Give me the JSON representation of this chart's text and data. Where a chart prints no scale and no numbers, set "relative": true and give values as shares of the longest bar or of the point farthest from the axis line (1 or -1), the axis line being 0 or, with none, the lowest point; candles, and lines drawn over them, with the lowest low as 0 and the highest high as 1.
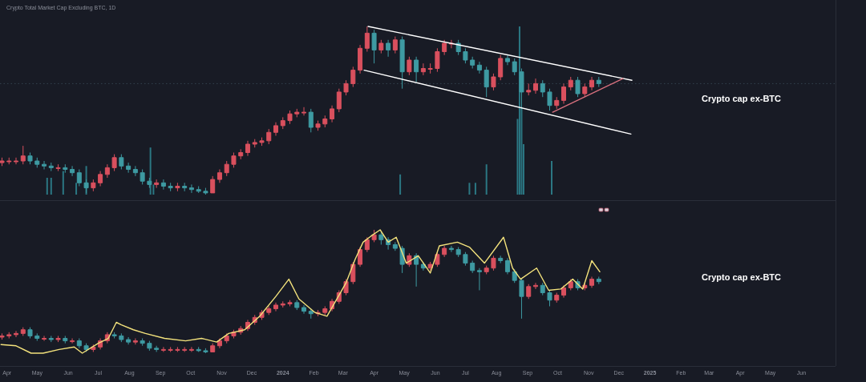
{
  "chart_data": [
    {
      "type": "candlestick",
      "title": "Crypto Total Market Cap Excluding BTC, 1D",
      "relative": true,
      "tick_labels": false,
      "xlim": [
        "2023-03-25",
        "2025-07-05"
      ],
      "x": [
        "2023-03-27",
        "2023-04-03",
        "2023-04-10",
        "2023-04-17",
        "2023-04-24",
        "2023-05-01",
        "2023-05-08",
        "2023-05-15",
        "2023-05-22",
        "2023-05-29",
        "2023-06-05",
        "2023-06-12",
        "2023-06-19",
        "2023-06-26",
        "2023-07-03",
        "2023-07-10",
        "2023-07-17",
        "2023-07-24",
        "2023-07-31",
        "2023-08-07",
        "2023-08-14",
        "2023-08-21",
        "2023-08-28",
        "2023-09-04",
        "2023-09-11",
        "2023-09-18",
        "2023-09-25",
        "2023-10-02",
        "2023-10-09",
        "2023-10-16",
        "2023-10-23",
        "2023-10-30",
        "2023-11-06",
        "2023-11-13",
        "2023-11-20",
        "2023-11-27",
        "2023-12-04",
        "2023-12-11",
        "2023-12-18",
        "2023-12-25",
        "2024-01-01",
        "2024-01-08",
        "2024-01-15",
        "2024-01-22",
        "2024-01-29",
        "2024-02-05",
        "2024-02-12",
        "2024-02-19",
        "2024-02-26",
        "2024-03-04",
        "2024-03-11",
        "2024-03-18",
        "2024-03-25",
        "2024-04-01",
        "2024-04-08",
        "2024-04-15",
        "2024-04-22",
        "2024-04-29",
        "2024-05-06",
        "2024-05-13",
        "2024-05-20",
        "2024-05-27",
        "2024-06-03",
        "2024-06-10",
        "2024-06-17",
        "2024-06-24",
        "2024-07-01",
        "2024-07-08",
        "2024-07-15",
        "2024-07-22",
        "2024-07-29",
        "2024-08-05",
        "2024-08-12",
        "2024-08-19",
        "2024-08-26",
        "2024-09-02",
        "2024-09-09",
        "2024-09-16",
        "2024-09-23",
        "2024-09-30",
        "2024-10-07",
        "2024-10-14",
        "2024-10-21",
        "2024-10-28",
        "2024-11-04",
        "2024-11-11"
      ],
      "ohlc": [
        [
          0.19,
          0.22,
          0.17,
          0.2
        ],
        [
          0.2,
          0.22,
          0.18,
          0.2
        ],
        [
          0.2,
          0.22,
          0.18,
          0.2
        ],
        [
          0.2,
          0.29,
          0.18,
          0.23
        ],
        [
          0.23,
          0.25,
          0.18,
          0.2
        ],
        [
          0.2,
          0.22,
          0.16,
          0.18
        ],
        [
          0.18,
          0.2,
          0.15,
          0.17
        ],
        [
          0.17,
          0.19,
          0.14,
          0.16
        ],
        [
          0.16,
          0.18,
          0.14,
          0.16
        ],
        [
          0.16,
          0.18,
          0.13,
          0.15
        ],
        [
          0.15,
          0.17,
          0.11,
          0.13
        ],
        [
          0.13,
          0.15,
          0.05,
          0.07
        ],
        [
          0.07,
          0.09,
          0.01,
          0.04
        ],
        [
          0.04,
          0.09,
          0.02,
          0.07
        ],
        [
          0.07,
          0.14,
          0.05,
          0.12
        ],
        [
          0.12,
          0.18,
          0.1,
          0.16
        ],
        [
          0.16,
          0.24,
          0.14,
          0.22
        ],
        [
          0.22,
          0.24,
          0.15,
          0.17
        ],
        [
          0.17,
          0.19,
          0.13,
          0.15
        ],
        [
          0.15,
          0.17,
          0.11,
          0.13
        ],
        [
          0.13,
          0.15,
          0.06,
          0.08
        ],
        [
          0.08,
          0.1,
          0.04,
          0.06
        ],
        [
          0.06,
          0.09,
          0.04,
          0.07
        ],
        [
          0.07,
          0.09,
          0.03,
          0.05
        ],
        [
          0.05,
          0.07,
          0.02,
          0.04
        ],
        [
          0.04,
          0.07,
          0.02,
          0.05
        ],
        [
          0.05,
          0.07,
          0.02,
          0.04
        ],
        [
          0.04,
          0.06,
          0.01,
          0.03
        ],
        [
          0.03,
          0.05,
          0.01,
          0.02
        ],
        [
          0.02,
          0.04,
          0,
          0.01
        ],
        [
          0.01,
          0.11,
          0.01,
          0.09
        ],
        [
          0.09,
          0.15,
          0.07,
          0.13
        ],
        [
          0.13,
          0.2,
          0.11,
          0.18
        ],
        [
          0.18,
          0.25,
          0.16,
          0.23
        ],
        [
          0.23,
          0.27,
          0.21,
          0.25
        ],
        [
          0.25,
          0.32,
          0.23,
          0.3
        ],
        [
          0.3,
          0.33,
          0.28,
          0.31
        ],
        [
          0.31,
          0.34,
          0.29,
          0.32
        ],
        [
          0.32,
          0.39,
          0.3,
          0.37
        ],
        [
          0.37,
          0.43,
          0.35,
          0.41
        ],
        [
          0.41,
          0.46,
          0.39,
          0.44
        ],
        [
          0.44,
          0.5,
          0.42,
          0.48
        ],
        [
          0.48,
          0.51,
          0.46,
          0.49
        ],
        [
          0.49,
          0.52,
          0.47,
          0.49
        ],
        [
          0.49,
          0.51,
          0.37,
          0.4
        ],
        [
          0.4,
          0.44,
          0.38,
          0.42
        ],
        [
          0.42,
          0.47,
          0.4,
          0.45
        ],
        [
          0.45,
          0.53,
          0.43,
          0.51
        ],
        [
          0.51,
          0.63,
          0.49,
          0.61
        ],
        [
          0.61,
          0.68,
          0.59,
          0.66
        ],
        [
          0.66,
          0.76,
          0.64,
          0.74
        ],
        [
          0.74,
          0.89,
          0.72,
          0.87
        ],
        [
          0.87,
          1,
          0.85,
          0.96
        ],
        [
          0.96,
          0.98,
          0.78,
          0.86
        ],
        [
          0.86,
          0.92,
          0.84,
          0.9
        ],
        [
          0.9,
          0.92,
          0.82,
          0.86
        ],
        [
          0.86,
          0.94,
          0.84,
          0.92
        ],
        [
          0.92,
          0.94,
          0.63,
          0.73
        ],
        [
          0.73,
          0.82,
          0.71,
          0.8
        ],
        [
          0.8,
          0.82,
          0.67,
          0.73
        ],
        [
          0.73,
          0.78,
          0.71,
          0.75
        ],
        [
          0.75,
          0.78,
          0.72,
          0.75
        ],
        [
          0.75,
          0.87,
          0.73,
          0.85
        ],
        [
          0.85,
          0.92,
          0.83,
          0.9
        ],
        [
          0.9,
          0.92,
          0.87,
          0.9
        ],
        [
          0.9,
          0.92,
          0.83,
          0.85
        ],
        [
          0.85,
          0.87,
          0.78,
          0.8
        ],
        [
          0.8,
          0.82,
          0.75,
          0.77
        ],
        [
          0.77,
          0.79,
          0.72,
          0.74
        ],
        [
          0.74,
          0.76,
          0.58,
          0.64
        ],
        [
          0.64,
          0.72,
          0.62,
          0.7
        ],
        [
          0.7,
          0.83,
          0.68,
          0.81
        ],
        [
          0.81,
          0.83,
          0.77,
          0.79
        ],
        [
          0.79,
          0.81,
          0.71,
          0.73
        ],
        [
          0.73,
          0.75,
          0.51,
          0.61
        ],
        [
          0.61,
          0.66,
          0.59,
          0.62
        ],
        [
          0.62,
          0.69,
          0.6,
          0.66
        ],
        [
          0.66,
          0.68,
          0.58,
          0.61
        ],
        [
          0.61,
          0.63,
          0.5,
          0.53
        ],
        [
          0.53,
          0.58,
          0.51,
          0.56
        ],
        [
          0.56,
          0.66,
          0.54,
          0.64
        ],
        [
          0.64,
          0.7,
          0.62,
          0.68
        ],
        [
          0.68,
          0.7,
          0.58,
          0.6
        ],
        [
          0.6,
          0.66,
          0.58,
          0.64
        ],
        [
          0.64,
          0.7,
          0.62,
          0.68
        ],
        [
          0.68,
          0.7,
          0.64,
          0.66
        ]
      ],
      "series": [
        {
          "type": "bar",
          "color": "#2b7783",
          "x": [
            "2023-05-11",
            "2023-05-15",
            "2023-05-27",
            "2023-06-09",
            "2023-06-19",
            "2023-08-22",
            "2023-08-25",
            "2024-04-27",
            "2024-07-05",
            "2024-07-11",
            "2024-07-22",
            "2024-08-22",
            "2024-08-24",
            "2024-08-26",
            "2024-08-28",
            "2024-09-25"
          ],
          "values": [
            0.1,
            0.1,
            0.14,
            0.07,
            0.17,
            0.28,
            0.06,
            0.12,
            0.07,
            0.07,
            0.18,
            0.45,
            1,
            0.52,
            0.3,
            0.2
          ]
        },
        {
          "type": "line",
          "color": "#ffffff",
          "x": [
            "2024-03-26",
            "2024-12-14"
          ],
          "values": [
            1,
            0.68
          ]
        },
        {
          "type": "line",
          "color": "#ffffff",
          "x": [
            "2024-03-22",
            "2024-12-13"
          ],
          "values": [
            0.74,
            0.36
          ]
        },
        {
          "type": "line",
          "color": "#d9707e",
          "x": [
            "2024-09-26",
            "2024-12-05"
          ],
          "values": [
            0.49,
            0.69
          ]
        }
      ],
      "ref_lines": [
        {
          "axis": "y",
          "value": 0.66,
          "color": "#34434e",
          "line_style": "dotted"
        }
      ],
      "annotations": [
        "Crypto cap ex-BTC"
      ]
    },
    {
      "type": "candlestick",
      "relative": true,
      "tick_labels": "x",
      "xlim": [
        "2023-03-25",
        "2025-07-05"
      ],
      "xticks": [
        {
          "value": "2023-04-01",
          "label": "Apr"
        },
        {
          "value": "2023-05-01",
          "label": "May"
        },
        {
          "value": "2023-06-01",
          "label": "Jun"
        },
        {
          "value": "2023-07-01",
          "label": "Jul"
        },
        {
          "value": "2023-08-01",
          "label": "Aug"
        },
        {
          "value": "2023-09-01",
          "label": "Sep"
        },
        {
          "value": "2023-10-01",
          "label": "Oct"
        },
        {
          "value": "2023-11-01",
          "label": "Nov"
        },
        {
          "value": "2023-12-01",
          "label": "Dec"
        },
        {
          "value": "2024-01-01",
          "label": "2024"
        },
        {
          "value": "2024-02-01",
          "label": "Feb"
        },
        {
          "value": "2024-03-01",
          "label": "Mar"
        },
        {
          "value": "2024-04-01",
          "label": "Apr"
        },
        {
          "value": "2024-05-01",
          "label": "May"
        },
        {
          "value": "2024-06-01",
          "label": "Jun"
        },
        {
          "value": "2024-07-01",
          "label": "Jul"
        },
        {
          "value": "2024-08-01",
          "label": "Aug"
        },
        {
          "value": "2024-09-01",
          "label": "Sep"
        },
        {
          "value": "2024-10-01",
          "label": "Oct"
        },
        {
          "value": "2024-11-01",
          "label": "Nov"
        },
        {
          "value": "2024-12-01",
          "label": "Dec"
        },
        {
          "value": "2025-01-01",
          "label": "2025"
        },
        {
          "value": "2025-02-01",
          "label": "Feb"
        },
        {
          "value": "2025-03-01",
          "label": "Mar"
        },
        {
          "value": "2025-04-01",
          "label": "Apr"
        },
        {
          "value": "2025-05-01",
          "label": "May"
        },
        {
          "value": "2025-06-01",
          "label": "Jun"
        }
      ],
      "x": [
        "2023-03-27",
        "2023-04-03",
        "2023-04-10",
        "2023-04-17",
        "2023-04-24",
        "2023-05-01",
        "2023-05-08",
        "2023-05-15",
        "2023-05-22",
        "2023-05-29",
        "2023-06-05",
        "2023-06-12",
        "2023-06-19",
        "2023-06-26",
        "2023-07-03",
        "2023-07-10",
        "2023-07-17",
        "2023-07-24",
        "2023-07-31",
        "2023-08-07",
        "2023-08-14",
        "2023-08-21",
        "2023-08-28",
        "2023-09-04",
        "2023-09-11",
        "2023-09-18",
        "2023-09-25",
        "2023-10-02",
        "2023-10-09",
        "2023-10-16",
        "2023-10-23",
        "2023-10-30",
        "2023-11-06",
        "2023-11-13",
        "2023-11-20",
        "2023-11-27",
        "2023-12-04",
        "2023-12-11",
        "2023-12-18",
        "2023-12-25",
        "2024-01-01",
        "2024-01-08",
        "2024-01-15",
        "2024-01-22",
        "2024-01-29",
        "2024-02-05",
        "2024-02-12",
        "2024-02-19",
        "2024-02-26",
        "2024-03-04",
        "2024-03-11",
        "2024-03-18",
        "2024-03-25",
        "2024-04-01",
        "2024-04-08",
        "2024-04-15",
        "2024-04-22",
        "2024-04-29",
        "2024-05-06",
        "2024-05-13",
        "2024-05-20",
        "2024-05-27",
        "2024-06-03",
        "2024-06-10",
        "2024-06-17",
        "2024-06-24",
        "2024-07-01",
        "2024-07-08",
        "2024-07-15",
        "2024-07-22",
        "2024-07-29",
        "2024-08-05",
        "2024-08-12",
        "2024-08-19",
        "2024-08-26",
        "2024-09-02",
        "2024-09-09",
        "2024-09-16",
        "2024-09-23",
        "2024-09-30",
        "2024-10-07",
        "2024-10-14",
        "2024-10-21",
        "2024-10-28",
        "2024-11-04",
        "2024-11-11"
      ],
      "ohlc": [
        [
          0.13,
          0.16,
          0.11,
          0.14
        ],
        [
          0.14,
          0.17,
          0.12,
          0.15
        ],
        [
          0.15,
          0.18,
          0.13,
          0.16
        ],
        [
          0.16,
          0.21,
          0.14,
          0.19
        ],
        [
          0.19,
          0.21,
          0.12,
          0.14
        ],
        [
          0.14,
          0.16,
          0.1,
          0.12
        ],
        [
          0.12,
          0.14,
          0.1,
          0.12
        ],
        [
          0.12,
          0.14,
          0.09,
          0.11
        ],
        [
          0.11,
          0.14,
          0.09,
          0.12
        ],
        [
          0.12,
          0.14,
          0.08,
          0.1
        ],
        [
          0.1,
          0.12,
          0.08,
          0.1
        ],
        [
          0.1,
          0.12,
          0.04,
          0.06
        ],
        [
          0.06,
          0.08,
          0.01,
          0.03
        ],
        [
          0.03,
          0.07,
          0.01,
          0.05
        ],
        [
          0.05,
          0.12,
          0.03,
          0.1
        ],
        [
          0.1,
          0.17,
          0.08,
          0.15
        ],
        [
          0.15,
          0.17,
          0.12,
          0.14
        ],
        [
          0.14,
          0.16,
          0.09,
          0.11
        ],
        [
          0.11,
          0.13,
          0.07,
          0.09
        ],
        [
          0.09,
          0.12,
          0.07,
          0.1
        ],
        [
          0.1,
          0.12,
          0.06,
          0.08
        ],
        [
          0.08,
          0.1,
          0.02,
          0.04
        ],
        [
          0.04,
          0.06,
          0.01,
          0.03
        ],
        [
          0.03,
          0.05,
          0.01,
          0.03
        ],
        [
          0.03,
          0.05,
          0.01,
          0.03
        ],
        [
          0.03,
          0.05,
          0.01,
          0.03
        ],
        [
          0.03,
          0.05,
          0.01,
          0.03
        ],
        [
          0.03,
          0.05,
          0.01,
          0.03
        ],
        [
          0.03,
          0.05,
          0.01,
          0.02
        ],
        [
          0.02,
          0.04,
          0,
          0.01
        ],
        [
          0.01,
          0.08,
          0.01,
          0.06
        ],
        [
          0.06,
          0.12,
          0.04,
          0.1
        ],
        [
          0.1,
          0.16,
          0.08,
          0.14
        ],
        [
          0.14,
          0.19,
          0.12,
          0.17
        ],
        [
          0.17,
          0.22,
          0.15,
          0.2
        ],
        [
          0.2,
          0.27,
          0.18,
          0.25
        ],
        [
          0.25,
          0.31,
          0.23,
          0.29
        ],
        [
          0.29,
          0.35,
          0.27,
          0.33
        ],
        [
          0.33,
          0.38,
          0.31,
          0.36
        ],
        [
          0.36,
          0.41,
          0.34,
          0.39
        ],
        [
          0.39,
          0.42,
          0.37,
          0.4
        ],
        [
          0.4,
          0.43,
          0.38,
          0.41
        ],
        [
          0.41,
          0.43,
          0.35,
          0.37
        ],
        [
          0.37,
          0.39,
          0.32,
          0.34
        ],
        [
          0.34,
          0.36,
          0.28,
          0.32
        ],
        [
          0.32,
          0.35,
          0.3,
          0.33
        ],
        [
          0.33,
          0.38,
          0.31,
          0.36
        ],
        [
          0.36,
          0.44,
          0.34,
          0.42
        ],
        [
          0.42,
          0.51,
          0.4,
          0.49
        ],
        [
          0.49,
          0.6,
          0.47,
          0.58
        ],
        [
          0.58,
          0.74,
          0.56,
          0.72
        ],
        [
          0.72,
          0.86,
          0.7,
          0.84
        ],
        [
          0.84,
          0.94,
          0.82,
          0.92
        ],
        [
          0.92,
          1,
          0.9,
          0.96
        ],
        [
          0.96,
          0.98,
          0.88,
          0.92
        ],
        [
          0.92,
          0.94,
          0.84,
          0.88
        ],
        [
          0.88,
          0.9,
          0.83,
          0.85
        ],
        [
          0.85,
          0.87,
          0.65,
          0.72
        ],
        [
          0.72,
          0.81,
          0.7,
          0.79
        ],
        [
          0.79,
          0.81,
          0.54,
          0.72
        ],
        [
          0.72,
          0.74,
          0.67,
          0.69
        ],
        [
          0.69,
          0.74,
          0.67,
          0.72
        ],
        [
          0.72,
          0.82,
          0.7,
          0.8
        ],
        [
          0.8,
          0.87,
          0.78,
          0.85
        ],
        [
          0.85,
          0.87,
          0.82,
          0.84
        ],
        [
          0.84,
          0.86,
          0.78,
          0.8
        ],
        [
          0.8,
          0.82,
          0.71,
          0.73
        ],
        [
          0.73,
          0.75,
          0.65,
          0.67
        ],
        [
          0.67,
          0.69,
          0.51,
          0.66
        ],
        [
          0.66,
          0.71,
          0.64,
          0.69
        ],
        [
          0.69,
          0.79,
          0.67,
          0.77
        ],
        [
          0.77,
          0.79,
          0.73,
          0.75
        ],
        [
          0.75,
          0.77,
          0.64,
          0.66
        ],
        [
          0.66,
          0.68,
          0.57,
          0.59
        ],
        [
          0.59,
          0.61,
          0.28,
          0.46
        ],
        [
          0.46,
          0.56,
          0.44,
          0.54
        ],
        [
          0.54,
          0.57,
          0.52,
          0.55
        ],
        [
          0.55,
          0.57,
          0.47,
          0.49
        ],
        [
          0.49,
          0.51,
          0.38,
          0.43
        ],
        [
          0.43,
          0.49,
          0.41,
          0.47
        ],
        [
          0.47,
          0.55,
          0.45,
          0.53
        ],
        [
          0.53,
          0.6,
          0.51,
          0.58
        ],
        [
          0.58,
          0.6,
          0.51,
          0.53
        ],
        [
          0.53,
          0.57,
          0.51,
          0.55
        ],
        [
          0.55,
          0.62,
          0.53,
          0.6
        ],
        [
          0.6,
          0.62,
          0.56,
          0.58
        ]
      ],
      "series": [
        {
          "type": "line",
          "color": "#f3e27c",
          "x": [
            "2023-03-26",
            "2023-04-10",
            "2023-04-25",
            "2023-05-07",
            "2023-05-23",
            "2023-06-07",
            "2023-06-15",
            "2023-07-01",
            "2023-07-11",
            "2023-07-19",
            "2023-07-24",
            "2023-08-05",
            "2023-08-17",
            "2023-09-05",
            "2023-09-26",
            "2023-10-12",
            "2023-10-27",
            "2023-11-08",
            "2023-11-24",
            "2023-12-09",
            "2023-12-25",
            "2024-01-07",
            "2024-01-17",
            "2024-02-02",
            "2024-02-14",
            "2024-02-26",
            "2024-03-04",
            "2024-03-13",
            "2024-03-21",
            "2024-03-29",
            "2024-04-07",
            "2024-04-15",
            "2024-04-23",
            "2024-05-03",
            "2024-05-15",
            "2024-05-27",
            "2024-06-05",
            "2024-06-23",
            "2024-07-05",
            "2024-07-20",
            "2024-08-08",
            "2024-08-17",
            "2024-08-25",
            "2024-09-10",
            "2024-09-22",
            "2024-10-04",
            "2024-10-16",
            "2024-10-26",
            "2024-11-04",
            "2024-11-12"
          ],
          "values": [
            0.07,
            0.06,
            0,
            0,
            0.03,
            0.05,
            0,
            0.08,
            0.12,
            0.25,
            0.23,
            0.19,
            0.16,
            0.12,
            0.1,
            0.12,
            0.09,
            0.16,
            0.19,
            0.3,
            0.46,
            0.6,
            0.44,
            0.33,
            0.3,
            0.47,
            0.57,
            0.76,
            0.9,
            0.95,
            1,
            0.9,
            0.94,
            0.73,
            0.79,
            0.65,
            0.87,
            0.9,
            0.86,
            0.73,
            0.94,
            0.69,
            0.6,
            0.69,
            0.51,
            0.52,
            0.6,
            0.52,
            0.75,
            0.66
          ]
        }
      ],
      "annotations": [
        "Crypto cap ex-BTC"
      ]
    }
  ]
}
